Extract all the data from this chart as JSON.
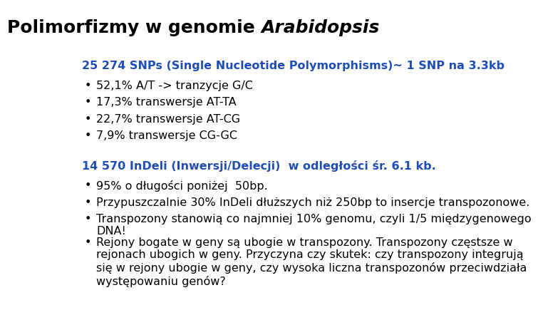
{
  "title_normal": "Polimorfizmy w genomie ",
  "title_italic": "Arabidopsis",
  "bg_color": "#ffffff",
  "blue_color": "#1e4db7",
  "black_color": "#000000",
  "title_fontsize": 18,
  "body_fontsize": 11.5,
  "snp_header": "25 274 SNPs (Single Nucleotide Polymorphisms)~ 1 SNP na 3.3kb",
  "snp_bullets": [
    "52,1% A/T -> tranzycje G/C",
    "17,3% transwersje AT-TA",
    "22,7% transwersje AT-CG",
    "7,9% transwersje CG-GC"
  ],
  "indel_header": "14 570 InDeli (Inwersji/Delecji)  w odległości śr. 6.1 kb.",
  "indel_bullets": [
    "95% o długości poniżej  50bp.",
    "Przypuszczalnie 30% InDeli dłuższych niż 250bp to insercje transpozonowe.",
    "Transpozony stanowią co najmniej 10% genomu, czyli 1/5 międzygenowego\nDNA!",
    "Rejony bogate w geny są ubogie w transpozony. Transpozony częstsze w\nrejonach ubogich w geny. Przyczyna czy skutek: czy transpozony integrują\nsię w rejony ubogie w geny, czy wysoka liczna transpozonów przeciwdziała\nwystępowaniu genów?"
  ]
}
